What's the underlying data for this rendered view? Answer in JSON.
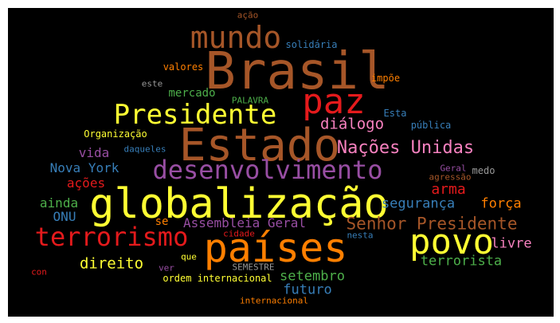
{
  "cloud": {
    "background": "#000000",
    "words": [
      {
        "text": "Brasil",
        "color": "#a65628"
      },
      {
        "text": "Estado",
        "color": "#a65628"
      },
      {
        "text": "globalização",
        "color": "#ffff33"
      },
      {
        "text": "países",
        "color": "#ff7f00"
      },
      {
        "text": "povo",
        "color": "#ffff33"
      },
      {
        "text": "paz",
        "color": "#e41a1c"
      },
      {
        "text": "mundo",
        "color": "#a65628"
      },
      {
        "text": "Presidente",
        "color": "#ffff33"
      },
      {
        "text": "desenvolvimento",
        "color": "#984ea3"
      },
      {
        "text": "terrorismo",
        "color": "#e41a1c"
      },
      {
        "text": "Nações Unidas",
        "color": "#f781bf"
      },
      {
        "text": "Senhor Presidente",
        "color": "#a65628"
      },
      {
        "text": "diálogo",
        "color": "#f781bf"
      },
      {
        "text": "arma",
        "color": "#e41a1c"
      },
      {
        "text": "segurança",
        "color": "#377eb8"
      },
      {
        "text": "força",
        "color": "#ff7f00"
      },
      {
        "text": "livre",
        "color": "#f781bf"
      },
      {
        "text": "terrorista",
        "color": "#4daf4a"
      },
      {
        "text": "direito",
        "color": "#ffff33"
      },
      {
        "text": "setembro",
        "color": "#4daf4a"
      },
      {
        "text": "futuro",
        "color": "#377eb8"
      },
      {
        "text": "Assembleia Geral",
        "color": "#984ea3"
      },
      {
        "text": "Nova York",
        "color": "#377eb8"
      },
      {
        "text": "vida",
        "color": "#984ea3"
      },
      {
        "text": "ações",
        "color": "#e41a1c"
      },
      {
        "text": "ainda",
        "color": "#4daf4a"
      },
      {
        "text": "ONU",
        "color": "#377eb8"
      },
      {
        "text": "se",
        "color": "#ff7f00"
      },
      {
        "text": "mercado",
        "color": "#4daf4a"
      },
      {
        "text": "ordem internacional",
        "color": "#ffff33"
      },
      {
        "text": "internacional",
        "color": "#ff7f00"
      },
      {
        "text": "ação",
        "color": "#a65628"
      },
      {
        "text": "solidária",
        "color": "#377eb8"
      },
      {
        "text": "valores",
        "color": "#ff7f00"
      },
      {
        "text": "impõe",
        "color": "#ff7f00"
      },
      {
        "text": "este",
        "color": "#999999"
      },
      {
        "text": "PALAVRA",
        "color": "#4daf4a"
      },
      {
        "text": "Esta",
        "color": "#377eb8"
      },
      {
        "text": "pública",
        "color": "#377eb8"
      },
      {
        "text": "Organização",
        "color": "#ffff33"
      },
      {
        "text": "daqueles",
        "color": "#377eb8"
      },
      {
        "text": "Geral",
        "color": "#984ea3"
      },
      {
        "text": "medo",
        "color": "#999999"
      },
      {
        "text": "agressão",
        "color": "#a65628"
      },
      {
        "text": "cidade",
        "color": "#e41a1c"
      },
      {
        "text": "nesta",
        "color": "#377eb8"
      },
      {
        "text": "que",
        "color": "#ffff33"
      },
      {
        "text": "ver",
        "color": "#984ea3"
      },
      {
        "text": "SEMESTRE",
        "color": "#999999"
      },
      {
        "text": "con",
        "color": "#e41a1c"
      }
    ]
  }
}
